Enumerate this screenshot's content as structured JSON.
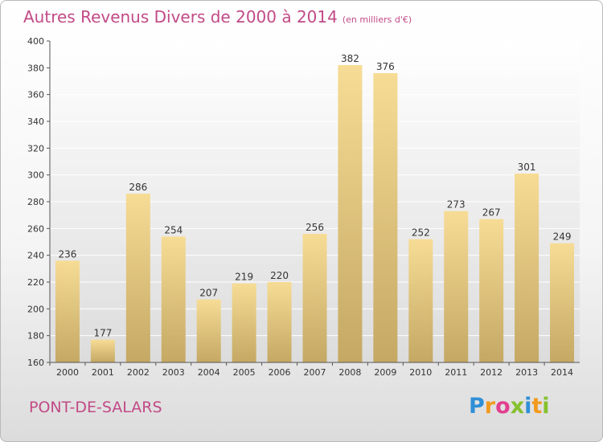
{
  "title": {
    "main": "Autres Revenus Divers de 2000 à 2014",
    "sub": "(en milliers d'€)"
  },
  "place": "PONT-DE-SALARS",
  "logo": {
    "letters": [
      "P",
      "r",
      "o",
      "x",
      "i",
      "t",
      "i"
    ],
    "colors": [
      "#2f8fd6",
      "#f29a1d",
      "#e23f8f",
      "#85c12f",
      "#2f8fd6",
      "#f29a1d",
      "#85c12f"
    ]
  },
  "chart_data": {
    "type": "bar",
    "categories": [
      "2000",
      "2001",
      "2002",
      "2003",
      "2004",
      "2005",
      "2006",
      "2007",
      "2008",
      "2009",
      "2010",
      "2011",
      "2012",
      "2013",
      "2014"
    ],
    "values": [
      236,
      177,
      286,
      254,
      207,
      219,
      220,
      256,
      382,
      376,
      252,
      273,
      267,
      301,
      249
    ],
    "title": "Autres Revenus Divers de 2000 à 2014",
    "subtitle": "(en milliers d'€)",
    "ylim": [
      160,
      400
    ],
    "yticks": [
      160,
      180,
      200,
      220,
      240,
      260,
      280,
      300,
      320,
      340,
      360,
      380,
      400
    ],
    "grid": true,
    "legend": "none",
    "colors": {
      "bar_light": "#f6dc95",
      "bar_dark": "#c4a864",
      "grid": "#ffffff",
      "plot_bg": "#dcdcdc"
    }
  }
}
